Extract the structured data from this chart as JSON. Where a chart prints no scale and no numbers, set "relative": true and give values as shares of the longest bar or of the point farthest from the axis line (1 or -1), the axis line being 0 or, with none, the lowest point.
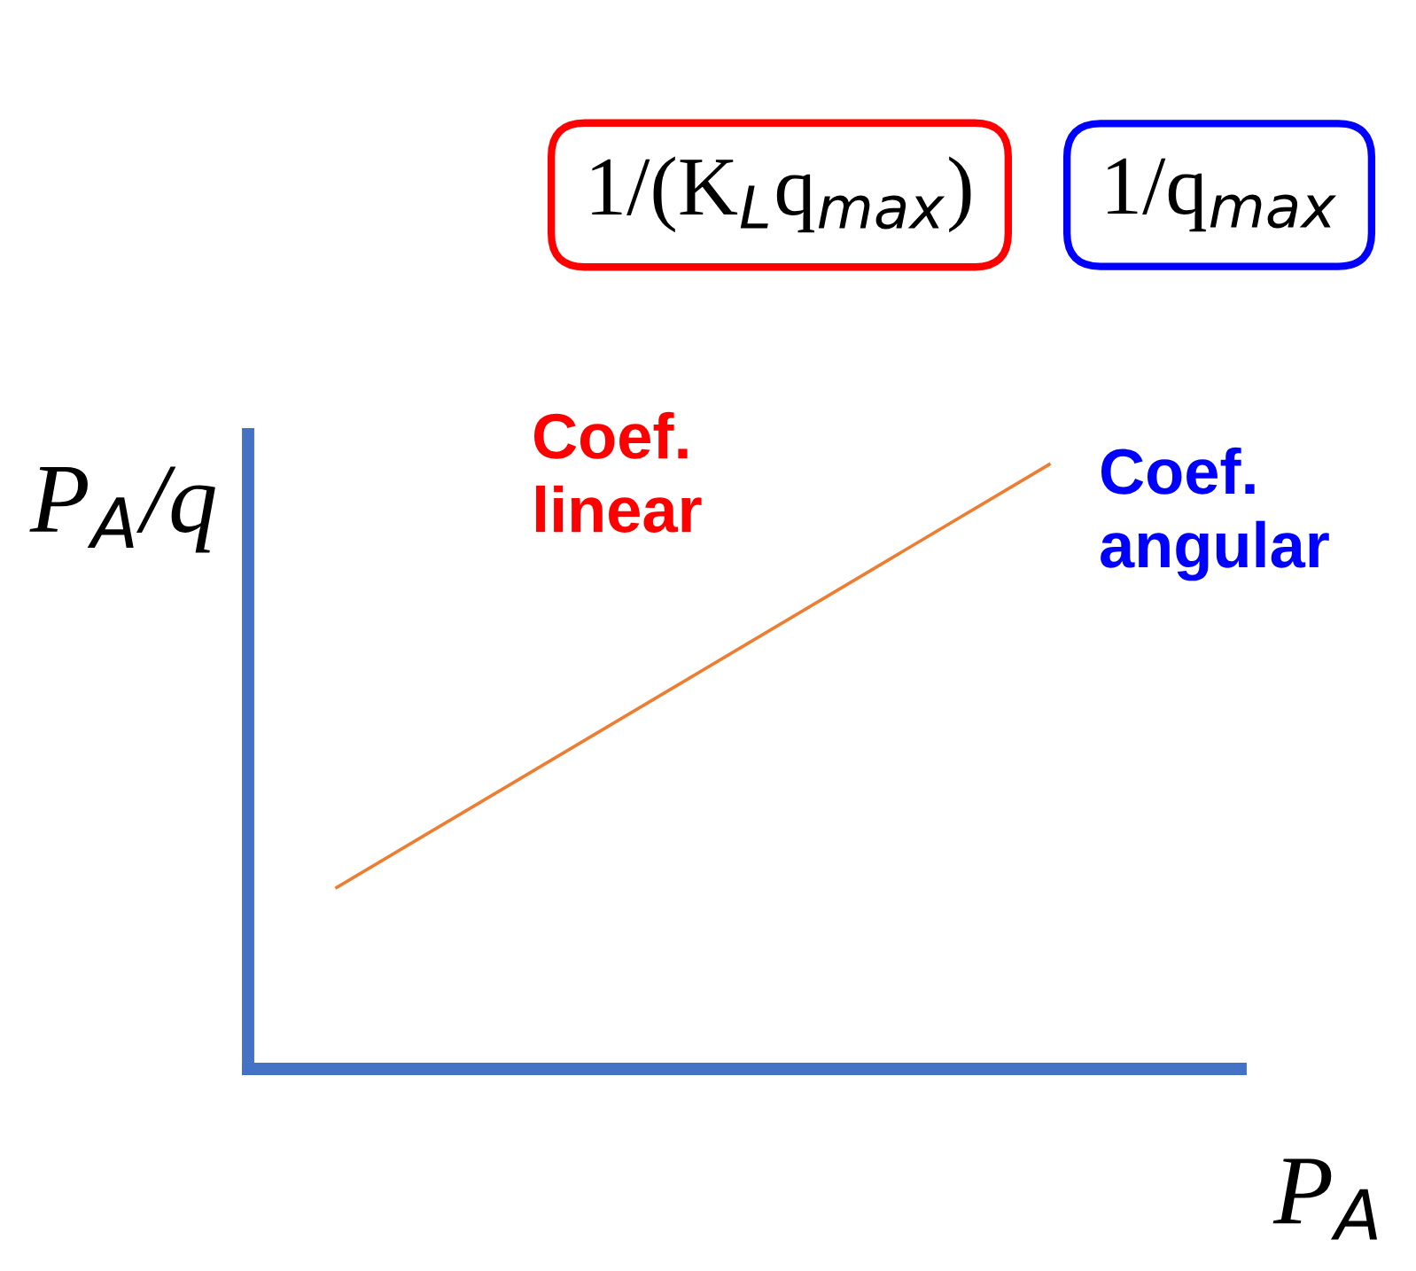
{
  "chart_data": {
    "type": "line",
    "relative": true,
    "categories": [
      null,
      null
    ],
    "series": [
      {
        "color": "#ed7d31",
        "values": [
          0.3,
          1
        ]
      }
    ],
    "xlabel": "P$_{A}$",
    "ylabel": "P$_{A}$/q",
    "annotations": [
      "1/(K$_{L}$q$_{max}$)",
      "Coef. linear",
      "1/q$_{max}$",
      "Coef. angular"
    ],
    "grid": false,
    "legend": false,
    "marker": "none",
    "line_style": "solid"
  }
}
